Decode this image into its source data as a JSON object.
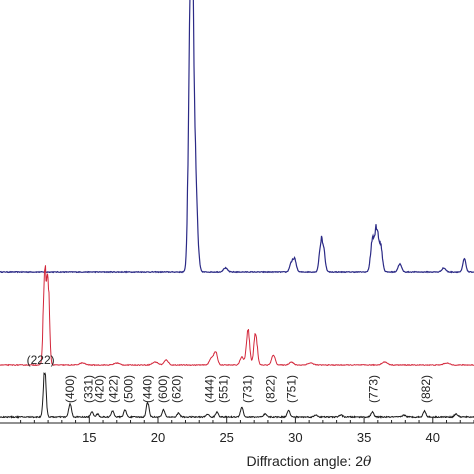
{
  "chart_data": {
    "type": "line",
    "title": "",
    "xlabel": "Diffraction angle: 2",
    "xlabel_symbol": "θ",
    "ylabel": "",
    "xlim": [
      8.5,
      43
    ],
    "x_ticks": [
      15,
      20,
      25,
      30,
      35,
      40
    ],
    "grid": false,
    "legend": "none",
    "series": [
      {
        "color": "#2b2a86",
        "baseline": 272,
        "flat_until": 8.5,
        "peaks": [
          {
            "x": 22.45,
            "h": 235,
            "w": 0.1
          },
          {
            "x": 22.3,
            "h": 172,
            "w": 0.12
          },
          {
            "x": 22.6,
            "h": 118,
            "w": 0.12
          },
          {
            "x": 22.75,
            "h": 62,
            "w": 0.15
          },
          {
            "x": 24.9,
            "h": 4,
            "w": 0.15
          },
          {
            "x": 29.7,
            "h": 9,
            "w": 0.12
          },
          {
            "x": 29.95,
            "h": 12,
            "w": 0.12
          },
          {
            "x": 31.85,
            "h": 26,
            "w": 0.12
          },
          {
            "x": 32.05,
            "h": 20,
            "w": 0.12
          },
          {
            "x": 35.6,
            "h": 30,
            "w": 0.13
          },
          {
            "x": 35.9,
            "h": 41,
            "w": 0.13
          },
          {
            "x": 36.2,
            "h": 26,
            "w": 0.13
          },
          {
            "x": 37.6,
            "h": 8,
            "w": 0.13
          },
          {
            "x": 40.8,
            "h": 4,
            "w": 0.14
          },
          {
            "x": 42.3,
            "h": 13,
            "w": 0.11
          }
        ]
      },
      {
        "color": "#d3263a",
        "baseline": 365,
        "flat_until": 8.5,
        "peaks": [
          {
            "x": 11.75,
            "h": 95,
            "w": 0.1
          },
          {
            "x": 12.0,
            "h": 85,
            "w": 0.1
          },
          {
            "x": 14.5,
            "h": 2,
            "w": 0.2
          },
          {
            "x": 17.0,
            "h": 2,
            "w": 0.2
          },
          {
            "x": 19.8,
            "h": 3,
            "w": 0.2
          },
          {
            "x": 20.6,
            "h": 5,
            "w": 0.15
          },
          {
            "x": 23.9,
            "h": 7,
            "w": 0.15
          },
          {
            "x": 24.2,
            "h": 12,
            "w": 0.13
          },
          {
            "x": 26.1,
            "h": 8,
            "w": 0.13
          },
          {
            "x": 26.55,
            "h": 35,
            "w": 0.12
          },
          {
            "x": 27.1,
            "h": 33,
            "w": 0.12
          },
          {
            "x": 28.4,
            "h": 10,
            "w": 0.13
          },
          {
            "x": 29.7,
            "h": 3,
            "w": 0.15
          },
          {
            "x": 31.1,
            "h": 2,
            "w": 0.2
          },
          {
            "x": 36.5,
            "h": 3,
            "w": 0.2
          },
          {
            "x": 41.0,
            "h": 2,
            "w": 0.2
          }
        ]
      },
      {
        "color": "#1a1a1a",
        "baseline": 417,
        "flat_until": 8.5,
        "peaks": [
          {
            "x": 11.75,
            "h": 47,
            "w": 0.1
          },
          {
            "x": 13.6,
            "h": 13,
            "w": 0.1
          },
          {
            "x": 15.2,
            "h": 5,
            "w": 0.1
          },
          {
            "x": 15.6,
            "h": 3,
            "w": 0.1
          },
          {
            "x": 16.7,
            "h": 6,
            "w": 0.1
          },
          {
            "x": 17.6,
            "h": 7,
            "w": 0.1
          },
          {
            "x": 19.25,
            "h": 15,
            "w": 0.1
          },
          {
            "x": 20.4,
            "h": 7,
            "w": 0.1
          },
          {
            "x": 21.5,
            "h": 4,
            "w": 0.1
          },
          {
            "x": 23.6,
            "h": 3,
            "w": 0.1
          },
          {
            "x": 24.3,
            "h": 5,
            "w": 0.1
          },
          {
            "x": 26.1,
            "h": 10,
            "w": 0.1
          },
          {
            "x": 27.8,
            "h": 3,
            "w": 0.1
          },
          {
            "x": 29.5,
            "h": 7,
            "w": 0.1
          },
          {
            "x": 31.5,
            "h": 2,
            "w": 0.12
          },
          {
            "x": 33.3,
            "h": 2,
            "w": 0.12
          },
          {
            "x": 35.6,
            "h": 5,
            "w": 0.1
          },
          {
            "x": 37.9,
            "h": 2,
            "w": 0.12
          },
          {
            "x": 39.4,
            "h": 6,
            "w": 0.1
          },
          {
            "x": 41.7,
            "h": 3,
            "w": 0.12
          }
        ]
      }
    ],
    "peak_labels": [
      {
        "text": "(222)",
        "x": 11.75,
        "rotate": false
      },
      {
        "text": "(400)",
        "x": 13.6,
        "rotate": true
      },
      {
        "text": "(331)",
        "x": 14.95,
        "rotate": true
      },
      {
        "text": "(420)",
        "x": 15.75,
        "rotate": true
      },
      {
        "text": "(422)",
        "x": 16.75,
        "rotate": true
      },
      {
        "text": "(500)",
        "x": 17.85,
        "rotate": true
      },
      {
        "text": "(440)",
        "x": 19.25,
        "rotate": true
      },
      {
        "text": "(600)",
        "x": 20.35,
        "rotate": true
      },
      {
        "text": "(620)",
        "x": 21.35,
        "rotate": true
      },
      {
        "text": "(444)",
        "x": 23.75,
        "rotate": true
      },
      {
        "text": "(551)",
        "x": 24.75,
        "rotate": true
      },
      {
        "text": "(731)",
        "x": 26.5,
        "rotate": true
      },
      {
        "text": "(822)",
        "x": 28.2,
        "rotate": true
      },
      {
        "text": "(751)",
        "x": 29.7,
        "rotate": true
      },
      {
        "text": "(773)",
        "x": 35.7,
        "rotate": true
      },
      {
        "text": "(882)",
        "x": 39.5,
        "rotate": true
      }
    ]
  }
}
